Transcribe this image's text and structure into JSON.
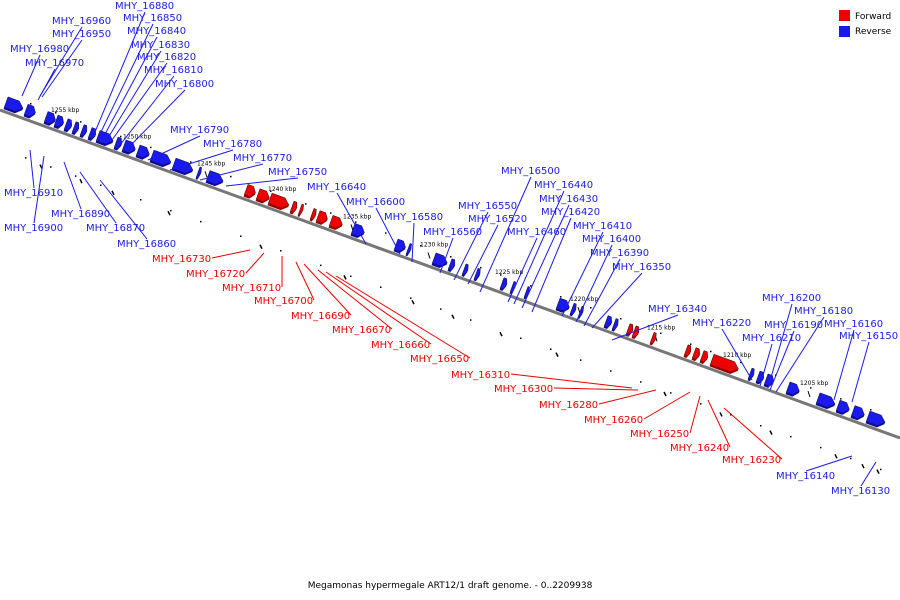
{
  "caption": "Megamonas hypermegale ART12/1 draft genome. - 0..2209938",
  "colors": {
    "forward": "#ee0000",
    "reverse": "#1a1aee",
    "backbone": "#777777"
  },
  "legend": [
    {
      "name": "Forward",
      "color": "#ee0000"
    },
    {
      "name": "Reverse",
      "color": "#1a1aee"
    }
  ],
  "ticks": [
    {
      "label": "1255 kbp",
      "pos_kbp": 1255
    },
    {
      "label": "1250 kbp",
      "pos_kbp": 1250
    },
    {
      "label": "1245 kbp",
      "pos_kbp": 1245
    },
    {
      "label": "1240 kbp",
      "pos_kbp": 1240
    },
    {
      "label": "1235 kbp",
      "pos_kbp": 1235
    },
    {
      "label": "1230 kbp",
      "pos_kbp": 1230
    },
    {
      "label": "1225 kbp",
      "pos_kbp": 1225
    },
    {
      "label": "1220 kbp",
      "pos_kbp": 1220
    },
    {
      "label": "1215 kbp",
      "pos_kbp": 1215
    },
    {
      "label": "1210 kbp",
      "pos_kbp": 1210
    },
    {
      "label": "1205 kbp",
      "pos_kbp": 1205
    }
  ],
  "reverse_labels": [
    "MHY_16980",
    "MHY_16970",
    "MHY_16960",
    "MHY_16950",
    "MHY_16880",
    "MHY_16850",
    "MHY_16840",
    "MHY_16830",
    "MHY_16820",
    "MHY_16810",
    "MHY_16800",
    "MHY_16790",
    "MHY_16780",
    "MHY_16770",
    "MHY_16750",
    "MHY_16640",
    "MHY_16600",
    "MHY_16580",
    "MHY_16560",
    "MHY_16550",
    "MHY_16520",
    "MHY_16500",
    "MHY_16440",
    "MHY_16430",
    "MHY_16420",
    "MHY_16460",
    "MHY_16410",
    "MHY_16400",
    "MHY_16390",
    "MHY_16350",
    "MHY_16340",
    "MHY_16220",
    "MHY_16200",
    "MHY_16180",
    "MHY_16190",
    "MHY_16210",
    "MHY_16160",
    "MHY_16150",
    "MHY_16910",
    "MHY_16900",
    "MHY_16890",
    "MHY_16870",
    "MHY_16860",
    "MHY_16140",
    "MHY_16130"
  ],
  "forward_labels": [
    "MHY_16730",
    "MHY_16720",
    "MHY_16710",
    "MHY_16700",
    "MHY_16690",
    "MHY_16670",
    "MHY_16660",
    "MHY_16650",
    "MHY_16310",
    "MHY_16300",
    "MHY_16280",
    "MHY_16260",
    "MHY_16250",
    "MHY_16240",
    "MHY_16230"
  ]
}
